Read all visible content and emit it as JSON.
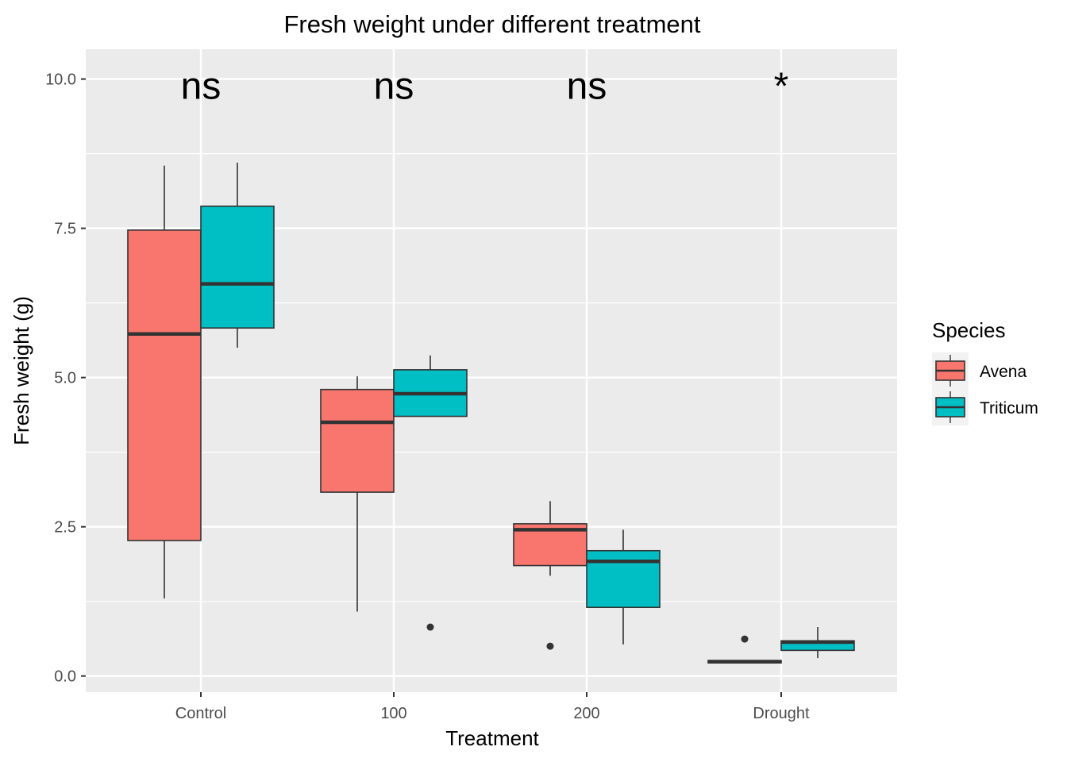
{
  "chart_data": {
    "type": "boxplot",
    "title": "Fresh weight under different treatment",
    "xlabel": "Treatment",
    "ylabel": "Fresh weight (g)",
    "categories": [
      "Control",
      "100",
      "200",
      "Drought"
    ],
    "ylim": [
      -0.27,
      10.5
    ],
    "yticks": [
      0.0,
      2.5,
      5.0,
      7.5,
      10.0
    ],
    "ytick_labels": [
      "0.0",
      "2.5",
      "5.0",
      "7.5",
      "10.0"
    ],
    "grid": true,
    "legend": {
      "title": "Species",
      "position": "right"
    },
    "series": [
      {
        "name": "Avena",
        "color": "#F8766D",
        "boxes": [
          {
            "category": "Control",
            "min": 1.3,
            "q1": 2.27,
            "median": 5.73,
            "q3": 7.47,
            "max": 8.55,
            "outliers": []
          },
          {
            "category": "100",
            "min": 1.08,
            "q1": 3.08,
            "median": 4.25,
            "q3": 4.8,
            "max": 5.02,
            "outliers": []
          },
          {
            "category": "200",
            "min": 1.68,
            "q1": 1.85,
            "median": 2.45,
            "q3": 2.55,
            "max": 2.93,
            "outliers": [
              0.5
            ]
          },
          {
            "category": "Drought",
            "min": 0.22,
            "q1": 0.22,
            "median": 0.24,
            "q3": 0.26,
            "max": 0.26,
            "outliers": [
              0.62
            ]
          }
        ]
      },
      {
        "name": "Triticum",
        "color": "#00BFC4",
        "boxes": [
          {
            "category": "Control",
            "min": 5.5,
            "q1": 5.83,
            "median": 6.57,
            "q3": 7.87,
            "max": 8.6,
            "outliers": []
          },
          {
            "category": "100",
            "min": 4.35,
            "q1": 4.35,
            "median": 4.73,
            "q3": 5.13,
            "max": 5.37,
            "outliers": [
              0.82
            ]
          },
          {
            "category": "200",
            "min": 0.53,
            "q1": 1.15,
            "median": 1.92,
            "q3": 2.1,
            "max": 2.45,
            "outliers": []
          },
          {
            "category": "Drought",
            "min": 0.3,
            "q1": 0.43,
            "median": 0.57,
            "q3": 0.59,
            "max": 0.82,
            "outliers": []
          }
        ]
      }
    ],
    "annotations": [
      {
        "category": "Control",
        "text": "ns",
        "y": 9.95
      },
      {
        "category": "100",
        "text": "ns",
        "y": 9.95
      },
      {
        "category": "200",
        "text": "ns",
        "y": 9.95
      },
      {
        "category": "Drought",
        "text": "*",
        "y": 9.95
      }
    ]
  }
}
